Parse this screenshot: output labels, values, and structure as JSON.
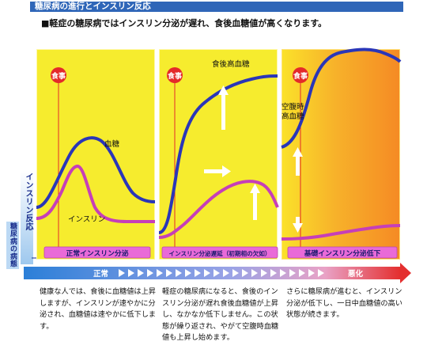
{
  "header": {
    "title": "糖尿病の進行とインスリン反応",
    "subtitle": "■軽症の糖尿病ではインスリン分泌が遅れ、食後血糖値が高くなります。"
  },
  "side_labels": {
    "insulin_response": "インスリン反応",
    "disease_state": "糖尿病の病態"
  },
  "panels": [
    {
      "meal_label": "食事",
      "annotations": {
        "glucose": "血糖",
        "insulin": "インスリン"
      },
      "band_label": "正常インスリン分泌",
      "description": "健康な人では、食後に血糖値は上昇しますが、インスリンが速やかに分泌され、血糖値は速やかに低下します。"
    },
    {
      "meal_label": "食事",
      "annotations": {
        "glucose": "食後高血糖"
      },
      "band_label": "インスリン分泌遅延（初期相の欠如）",
      "description": "軽症の糖尿病になると、食後のインスリン分泌が遅れ食後血糖値が上昇し、なかなか低下しません。この状態が繰り返され、やがて空腹時血糖値も上昇し始めます。"
    },
    {
      "meal_label": "食事",
      "annotations": {
        "glucose": "空腹時\n高血糖"
      },
      "band_label": "基礎インスリン分泌低下",
      "description": "さらに糖尿病が進むと、インスリン分泌が低下し、一日中血糖値の高い状態が続きます。"
    }
  ],
  "progression": {
    "start_label": "正常",
    "end_label": "悪化"
  },
  "colors": {
    "title_bg": "#2f66b8",
    "panel_yellow": "#f6ec2e",
    "panel_orange": "#f58a24",
    "glucose_line": "#2a36b8",
    "insulin_line": "#c63fb8",
    "meal_marker": "#e42a2a",
    "band": "#e96ad8",
    "arrow_start": "#2b7fd8",
    "arrow_end": "#e42f2f"
  }
}
